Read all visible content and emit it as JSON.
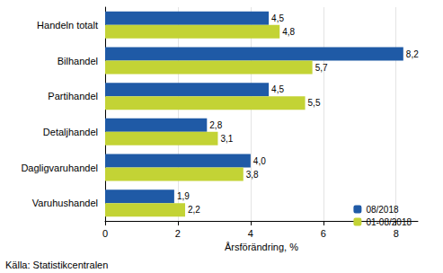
{
  "chart_data": {
    "type": "bar",
    "orientation": "horizontal",
    "categories": [
      "Handeln totalt",
      "Bilhandel",
      "Partihandel",
      "Detaljhandel",
      "Dagligvaruhandel",
      "Varuhushandel"
    ],
    "series": [
      {
        "name": "08/2018",
        "color": "#1f5aa6",
        "values": [
          4.5,
          8.2,
          4.5,
          2.8,
          4.0,
          1.9
        ],
        "value_labels": [
          "4,5",
          "8,2",
          "4,5",
          "2,8",
          "4,0",
          "1,9"
        ]
      },
      {
        "name": "01-08/2018",
        "color": "#c3d335",
        "values": [
          4.8,
          5.7,
          5.5,
          3.1,
          3.8,
          2.2
        ],
        "value_labels": [
          "4,8",
          "5,7",
          "5,5",
          "3,1",
          "3,8",
          "2,2"
        ]
      }
    ],
    "xlabel": "Årsförändring, %",
    "xlim": [
      0,
      8.6
    ],
    "xticks": [
      0,
      2,
      4,
      6,
      8
    ],
    "grid": true,
    "legend": "lower right",
    "data_labels": true,
    "source": "Källa: Statistikcentralen"
  }
}
